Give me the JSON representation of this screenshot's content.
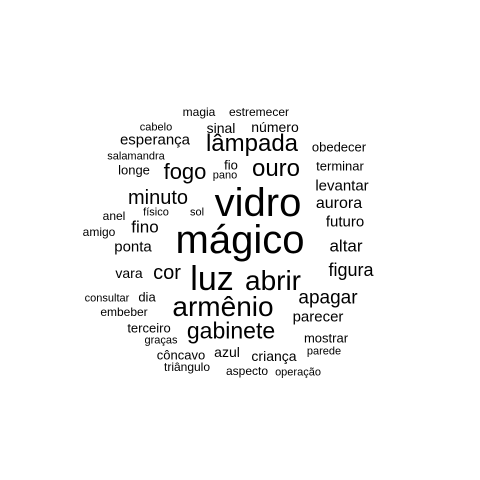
{
  "words": [
    {
      "text": "mágico",
      "weight": 40
    },
    {
      "text": "vidro",
      "weight": 40
    },
    {
      "text": "luz",
      "weight": 34
    },
    {
      "text": "armênio",
      "weight": 28
    },
    {
      "text": "abrir",
      "weight": 28
    },
    {
      "text": "ouro",
      "weight": 24
    },
    {
      "text": "lâmpada",
      "weight": 24
    },
    {
      "text": "gabinete",
      "weight": 23
    },
    {
      "text": "fogo",
      "weight": 22
    },
    {
      "text": "minuto",
      "weight": 20
    },
    {
      "text": "cor",
      "weight": 20
    },
    {
      "text": "apagar",
      "weight": 19
    },
    {
      "text": "figura",
      "weight": 18
    },
    {
      "text": "altar",
      "weight": 17
    },
    {
      "text": "fino",
      "weight": 17
    },
    {
      "text": "aurora",
      "weight": 16
    },
    {
      "text": "futuro",
      "weight": 15
    },
    {
      "text": "levantar",
      "weight": 15
    },
    {
      "text": "ponta",
      "weight": 15
    },
    {
      "text": "esperança",
      "weight": 15
    },
    {
      "text": "parecer",
      "weight": 15
    },
    {
      "text": "número",
      "weight": 14
    },
    {
      "text": "sinal",
      "weight": 14
    },
    {
      "text": "vara",
      "weight": 14
    },
    {
      "text": "criança",
      "weight": 14
    },
    {
      "text": "azul",
      "weight": 14
    },
    {
      "text": "terminar",
      "weight": 13
    },
    {
      "text": "côncavo",
      "weight": 13
    },
    {
      "text": "terceiro",
      "weight": 13
    },
    {
      "text": "obedecer",
      "weight": 13
    },
    {
      "text": "longe",
      "weight": 13
    },
    {
      "text": "mostrar",
      "weight": 13
    },
    {
      "text": "dia",
      "weight": 13
    },
    {
      "text": "fio",
      "weight": 13
    },
    {
      "text": "amigo",
      "weight": 12
    },
    {
      "text": "anel",
      "weight": 12
    },
    {
      "text": "embeber",
      "weight": 12
    },
    {
      "text": "estremecer",
      "weight": 12
    },
    {
      "text": "magia",
      "weight": 12
    },
    {
      "text": "aspecto",
      "weight": 12
    },
    {
      "text": "triângulo",
      "weight": 12
    },
    {
      "text": "consultar",
      "weight": 11
    },
    {
      "text": "cabelo",
      "weight": 11
    },
    {
      "text": "salamandra",
      "weight": 11
    },
    {
      "text": "pano",
      "weight": 11
    },
    {
      "text": "sol",
      "weight": 11
    },
    {
      "text": "físico",
      "weight": 11
    },
    {
      "text": "graças",
      "weight": 11
    },
    {
      "text": "parede",
      "weight": 11
    },
    {
      "text": "operação",
      "weight": 11
    }
  ]
}
